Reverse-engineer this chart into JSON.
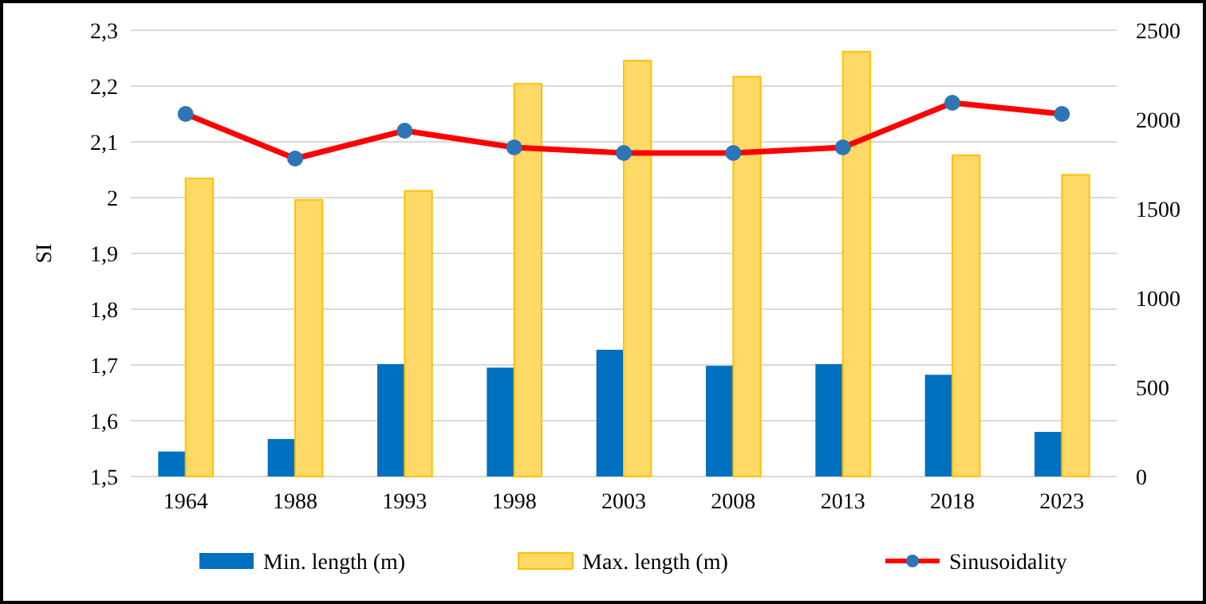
{
  "chart_data": {
    "type": "bar",
    "ylabel": "SI",
    "categories": [
      "1964",
      "1988",
      "1993",
      "1998",
      "2003",
      "2008",
      "2013",
      "2018",
      "2023"
    ],
    "series": [
      {
        "name": "Min. length (m)",
        "color": "#0070c0",
        "axis": "y2",
        "values": [
          140,
          210,
          630,
          610,
          710,
          620,
          630,
          570,
          250
        ]
      },
      {
        "name": "Max. length (m)",
        "color": "#ffd966",
        "axis": "y2",
        "values": [
          1670,
          1550,
          1600,
          2200,
          2330,
          2240,
          2380,
          1800,
          1690
        ]
      },
      {
        "name": "Sinusoidality",
        "type": "line",
        "color": "#ff0000",
        "marker": "circle",
        "values": [
          2.15,
          2.07,
          2.12,
          2.09,
          2.08,
          2.08,
          2.09,
          2.17,
          2.15
        ]
      }
    ],
    "ylim": [
      1.5,
      2.3
    ],
    "yticks": [
      {
        "value": 1.5,
        "label": "1,5"
      },
      {
        "value": 1.6,
        "label": "1,6"
      },
      {
        "value": 1.7,
        "label": "1,7"
      },
      {
        "value": 1.8,
        "label": "1,8"
      },
      {
        "value": 1.9,
        "label": "1,9"
      },
      2,
      {
        "value": 2.1,
        "label": "2,1"
      },
      {
        "value": 2.2,
        "label": "2,2"
      },
      {
        "value": 2.3,
        "label": "2,3"
      }
    ],
    "y2lim": [
      0,
      2500
    ],
    "y2ticks": [
      0,
      500,
      1000,
      1500,
      2000,
      2500
    ],
    "grid": "y",
    "legend": "bottom"
  }
}
